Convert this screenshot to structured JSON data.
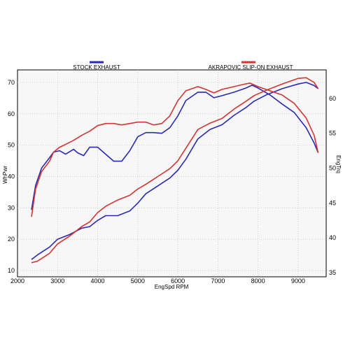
{
  "chart_data": {
    "type": "line",
    "x_axis": {
      "label": "EngSpd RPM",
      "range": [
        2000,
        9700
      ],
      "ticks": [
        2000,
        3000,
        4000,
        5000,
        6000,
        7000,
        8000,
        9000
      ]
    },
    "y_left": {
      "label": "WhPwr",
      "range": [
        8,
        74
      ],
      "ticks": [
        10,
        20,
        30,
        40,
        50,
        60,
        70
      ]
    },
    "y_right": {
      "label": "EngTrq",
      "range": [
        34.4,
        64.1
      ],
      "ticks": [
        35,
        40,
        45,
        50,
        55,
        60
      ]
    },
    "grid": true,
    "legend_placement": "top",
    "series": [
      {
        "name": "STOCK EXHAUST",
        "color": "#2a2ab5",
        "measure": "power",
        "axis": "left",
        "points": [
          [
            2350,
            13.5
          ],
          [
            2500,
            15
          ],
          [
            2800,
            17.5
          ],
          [
            3000,
            20
          ],
          [
            3300,
            21.5
          ],
          [
            3600,
            23.5
          ],
          [
            3800,
            24
          ],
          [
            4000,
            26
          ],
          [
            4200,
            27.5
          ],
          [
            4500,
            27.5
          ],
          [
            4800,
            29
          ],
          [
            5000,
            31.5
          ],
          [
            5200,
            34.5
          ],
          [
            5500,
            37
          ],
          [
            5800,
            39.5
          ],
          [
            6000,
            42
          ],
          [
            6200,
            45.5
          ],
          [
            6500,
            52
          ],
          [
            6800,
            55
          ],
          [
            7100,
            56.5
          ],
          [
            7400,
            59.5
          ],
          [
            7700,
            62
          ],
          [
            7900,
            64
          ],
          [
            8200,
            66
          ],
          [
            8600,
            68
          ],
          [
            9000,
            69.5
          ],
          [
            9200,
            70
          ],
          [
            9400,
            69
          ],
          [
            9500,
            68
          ]
        ]
      },
      {
        "name": "STOCK EXHAUST",
        "color": "#2a2ab5",
        "measure": "torque",
        "axis": "right",
        "points": [
          [
            2350,
            44
          ],
          [
            2450,
            47.5
          ],
          [
            2600,
            50
          ],
          [
            2800,
            51.5
          ],
          [
            2900,
            52.3
          ],
          [
            3050,
            52.5
          ],
          [
            3200,
            52
          ],
          [
            3400,
            52.7
          ],
          [
            3500,
            52.2
          ],
          [
            3650,
            51.8
          ],
          [
            3800,
            53
          ],
          [
            4000,
            53
          ],
          [
            4200,
            52
          ],
          [
            4400,
            51
          ],
          [
            4600,
            51
          ],
          [
            4800,
            52.5
          ],
          [
            5000,
            54.5
          ],
          [
            5200,
            55.1
          ],
          [
            5400,
            55.1
          ],
          [
            5600,
            55
          ],
          [
            5800,
            55.8
          ],
          [
            6000,
            57.5
          ],
          [
            6200,
            59.7
          ],
          [
            6500,
            60.9
          ],
          [
            6700,
            60.9
          ],
          [
            6900,
            60.1
          ],
          [
            7100,
            60.4
          ],
          [
            7400,
            60.9
          ],
          [
            7700,
            61.5
          ],
          [
            7850,
            61.9
          ],
          [
            8000,
            61.5
          ],
          [
            8300,
            60.5
          ],
          [
            8600,
            59.2
          ],
          [
            8900,
            58
          ],
          [
            9200,
            55.8
          ],
          [
            9400,
            53.6
          ],
          [
            9500,
            52.2
          ]
        ]
      },
      {
        "name": "AKRAPOVIC SLIP-ON EXHAUST",
        "color": "#d43333",
        "measure": "power",
        "axis": "left",
        "points": [
          [
            2350,
            12.5
          ],
          [
            2500,
            13
          ],
          [
            2800,
            15.5
          ],
          [
            3000,
            18.5
          ],
          [
            3300,
            21
          ],
          [
            3600,
            24
          ],
          [
            3800,
            25.5
          ],
          [
            4000,
            28.5
          ],
          [
            4200,
            30.5
          ],
          [
            4500,
            32.5
          ],
          [
            4800,
            34
          ],
          [
            5000,
            36
          ],
          [
            5200,
            37.5
          ],
          [
            5500,
            40
          ],
          [
            5800,
            42.5
          ],
          [
            6000,
            45
          ],
          [
            6200,
            49
          ],
          [
            6500,
            55
          ],
          [
            6800,
            57
          ],
          [
            7100,
            58.5
          ],
          [
            7400,
            61.5
          ],
          [
            7700,
            64
          ],
          [
            7900,
            65.8
          ],
          [
            8200,
            67.5
          ],
          [
            8600,
            69.5
          ],
          [
            9000,
            71.3
          ],
          [
            9200,
            71.5
          ],
          [
            9400,
            70
          ],
          [
            9500,
            68
          ]
        ]
      },
      {
        "name": "AKRAPOVIC SLIP-ON EXHAUST",
        "color": "#d43333",
        "measure": "torque",
        "axis": "right",
        "points": [
          [
            2350,
            43
          ],
          [
            2450,
            47
          ],
          [
            2600,
            49.5
          ],
          [
            2800,
            51
          ],
          [
            2900,
            52.3
          ],
          [
            3050,
            53
          ],
          [
            3200,
            53.4
          ],
          [
            3400,
            54
          ],
          [
            3600,
            54.7
          ],
          [
            3800,
            55.3
          ],
          [
            4000,
            56.1
          ],
          [
            4200,
            56.4
          ],
          [
            4400,
            56.4
          ],
          [
            4600,
            56.2
          ],
          [
            4800,
            56.4
          ],
          [
            5000,
            56.6
          ],
          [
            5200,
            56.6
          ],
          [
            5400,
            56.2
          ],
          [
            5600,
            56.4
          ],
          [
            5800,
            57.5
          ],
          [
            6000,
            59.7
          ],
          [
            6200,
            61.1
          ],
          [
            6500,
            61.7
          ],
          [
            6700,
            61.3
          ],
          [
            6900,
            60.8
          ],
          [
            7100,
            61.3
          ],
          [
            7400,
            61.7
          ],
          [
            7700,
            62.1
          ],
          [
            7800,
            62.2
          ],
          [
            8000,
            61.7
          ],
          [
            8300,
            61.1
          ],
          [
            8600,
            60.5
          ],
          [
            8900,
            59.3
          ],
          [
            9200,
            57.2
          ],
          [
            9400,
            54.7
          ],
          [
            9500,
            52.2
          ]
        ]
      }
    ]
  }
}
